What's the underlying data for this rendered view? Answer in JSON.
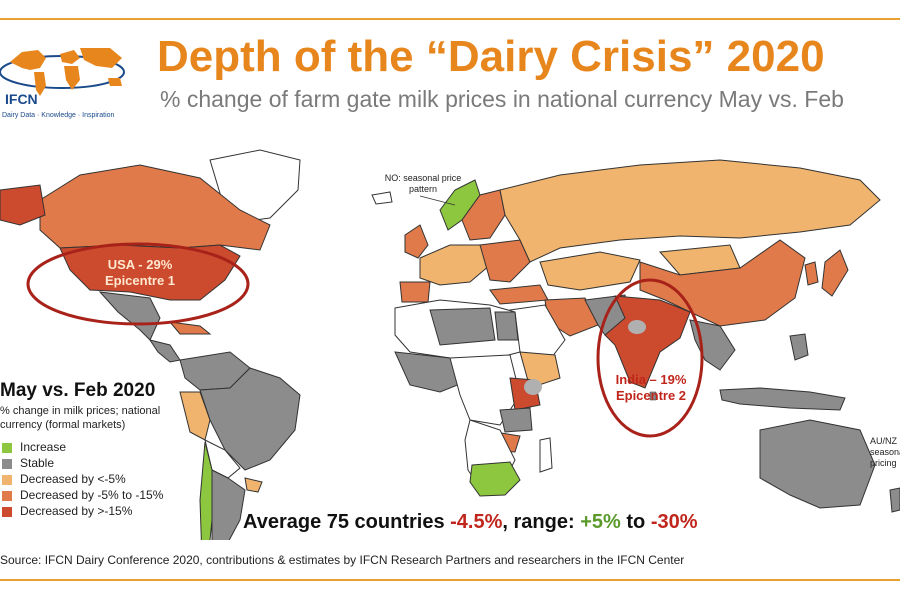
{
  "logo": {
    "name": "IFCN",
    "tagline": "Dairy Data · Knowledge · Inspiration"
  },
  "title": "Depth of the “Dairy Crisis” 2020",
  "subtitle": "% change of farm gate milk prices in national currency May vs. Feb",
  "notes": {
    "norway": "NO: seasonal price pattern",
    "australia": "AU/NZ seasonal pricing"
  },
  "epicentres": {
    "usa": {
      "label": "USA - 29%",
      "sub": "Epicentre 1"
    },
    "india": {
      "label": "India – 19%",
      "sub": "Epicentre 2"
    }
  },
  "legend": {
    "title": "May vs. Feb 2020",
    "subtitle": "% change in milk prices; national currency (formal markets)",
    "items": [
      {
        "label": "Increase",
        "color": "#8dc63f"
      },
      {
        "label": "Stable",
        "color": "#8c8c8c"
      },
      {
        "label": "Decreased by <-5%",
        "color": "#f0b46e"
      },
      {
        "label": "Decreased by -5% to -15%",
        "color": "#e07a4a"
      },
      {
        "label": "Decreased by >-15%",
        "color": "#cc4a2e"
      }
    ]
  },
  "summary": {
    "prefix": "Average 75 countries",
    "average": "-4.5%",
    "range_word": ", range",
    "colon": ":",
    "low": "+5%",
    "to": "to",
    "high": "-30%"
  },
  "source": "Source: IFCN Dairy Conference 2020, contributions & estimates by IFCN Research Partners and researchers in the IFCN Center"
}
